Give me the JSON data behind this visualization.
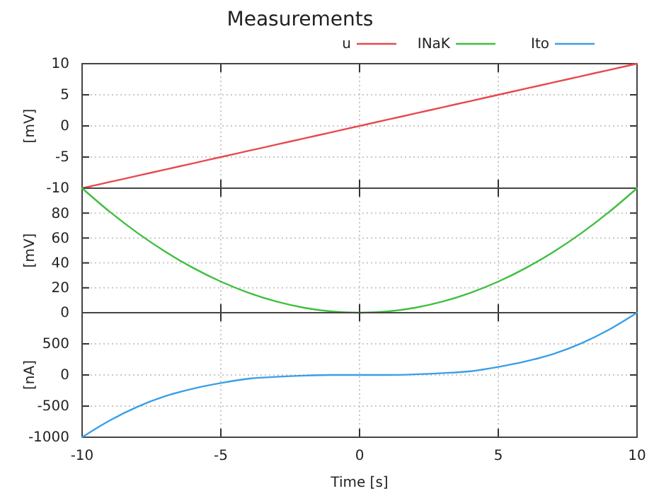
{
  "chart_data": [
    {
      "type": "line",
      "title": "Measurements",
      "ylabel": "[mV]",
      "x": [
        -10,
        -9,
        -8,
        -7,
        -6,
        -5,
        -4,
        -3,
        -2,
        -1,
        0,
        1,
        2,
        3,
        4,
        5,
        6,
        7,
        8,
        9,
        10
      ],
      "xlim": [
        -10,
        10
      ],
      "xticks": [
        -10,
        -5,
        0,
        5,
        10
      ],
      "ylim": [
        -10,
        10
      ],
      "yticks": [
        -10,
        -5,
        0,
        5,
        10
      ],
      "grid": true,
      "legend": "top right",
      "tick_labels": "y",
      "series": [
        {
          "name": "u",
          "color": "#e8494f",
          "values": [
            -10,
            -9,
            -8,
            -7,
            -6,
            -5,
            -4,
            -3,
            -2,
            -1,
            0,
            1,
            2,
            3,
            4,
            5,
            6,
            7,
            8,
            9,
            10
          ]
        }
      ]
    },
    {
      "type": "line",
      "ylabel": "[mV]",
      "x": [
        -10,
        -9,
        -8,
        -7,
        -6,
        -5,
        -4,
        -3,
        -2,
        -1,
        0,
        1,
        2,
        3,
        4,
        5,
        6,
        7,
        8,
        9,
        10
      ],
      "xlim": [
        -10,
        10
      ],
      "xticks": [
        -10,
        -5,
        0,
        5,
        10
      ],
      "ylim": [
        0,
        100
      ],
      "yticks": [
        0,
        20,
        40,
        60,
        80
      ],
      "grid": true,
      "legend": "top right",
      "tick_labels": "y",
      "series": [
        {
          "name": "INaK",
          "color": "#3fbf3f",
          "values": [
            100,
            81,
            64,
            49,
            36,
            25,
            16,
            9,
            4,
            1,
            0,
            1,
            4,
            9,
            16,
            25,
            36,
            49,
            64,
            81,
            100
          ]
        }
      ]
    },
    {
      "type": "line",
      "ylabel": "[nA]",
      "xlabel": "Time [s]",
      "x": [
        -10,
        -9,
        -8,
        -7,
        -6,
        -5,
        -4,
        -3,
        -2,
        -1,
        0,
        1,
        2,
        3,
        4,
        5,
        6,
        7,
        8,
        9,
        10
      ],
      "xlim": [
        -10,
        10
      ],
      "xticks": [
        -10,
        -5,
        0,
        5,
        10
      ],
      "ylim": [
        -1000,
        1000
      ],
      "yticks": [
        -1000,
        -500,
        0,
        500
      ],
      "grid": true,
      "legend": "top right",
      "series": [
        {
          "name": "Ito",
          "color": "#3a9ee8",
          "values": [
            -1000,
            -730,
            -510,
            -340,
            -220,
            -130,
            -60,
            -30,
            -10,
            0,
            0,
            0,
            10,
            30,
            60,
            130,
            220,
            340,
            510,
            730,
            1000
          ]
        }
      ]
    }
  ]
}
